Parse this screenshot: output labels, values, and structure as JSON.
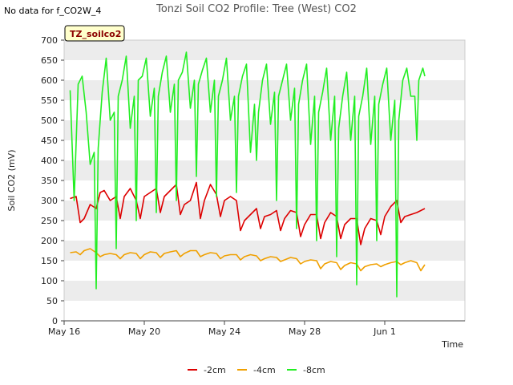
{
  "header": {
    "no_data_note": "No data for f_CO2W_4",
    "title": "Tonzi Soil CO2 Profile: Tree (West) CO2"
  },
  "chart_data": {
    "type": "line",
    "title": "Tonzi Soil CO2 Profile: Tree (West) CO2",
    "xlabel": "Time",
    "ylabel": "Soil CO2 (mV)",
    "ylim": [
      0,
      700
    ],
    "yticks": [
      0,
      50,
      100,
      150,
      200,
      250,
      300,
      350,
      400,
      450,
      500,
      550,
      600,
      650,
      700
    ],
    "xlim": [
      0,
      20
    ],
    "x_unit": "days since May 16",
    "xticks": [
      {
        "value": 0,
        "label": "May 16"
      },
      {
        "value": 4,
        "label": "May 20"
      },
      {
        "value": 8,
        "label": "May 24"
      },
      {
        "value": 12,
        "label": "May 28"
      },
      {
        "value": 16,
        "label": "Jun 1"
      }
    ],
    "badge": "TZ_soilco2",
    "legend_position": "bottom-center",
    "series": [
      {
        "name": "-2cm",
        "color": "#dd0000",
        "x": [
          0.3,
          0.6,
          0.8,
          1.0,
          1.3,
          1.6,
          1.8,
          2.0,
          2.3,
          2.6,
          2.8,
          3.0,
          3.3,
          3.6,
          3.8,
          4.0,
          4.3,
          4.6,
          4.8,
          5.0,
          5.3,
          5.6,
          5.8,
          6.0,
          6.3,
          6.6,
          6.8,
          7.0,
          7.3,
          7.6,
          7.8,
          8.0,
          8.3,
          8.6,
          8.8,
          9.0,
          9.3,
          9.6,
          9.8,
          10.0,
          10.3,
          10.6,
          10.8,
          11.0,
          11.3,
          11.6,
          11.8,
          12.0,
          12.3,
          12.6,
          12.8,
          13.0,
          13.3,
          13.6,
          13.8,
          14.0,
          14.3,
          14.6,
          14.8,
          15.0,
          15.3,
          15.6,
          15.8,
          16.0,
          16.3,
          16.6,
          16.8,
          17.0,
          17.3,
          17.6,
          17.8,
          18.0
        ],
        "values": [
          305,
          310,
          245,
          255,
          290,
          280,
          320,
          325,
          300,
          310,
          255,
          310,
          330,
          300,
          255,
          310,
          320,
          330,
          270,
          310,
          325,
          340,
          265,
          290,
          300,
          345,
          255,
          300,
          340,
          315,
          260,
          300,
          310,
          300,
          225,
          250,
          265,
          280,
          230,
          260,
          265,
          275,
          225,
          255,
          275,
          270,
          210,
          240,
          265,
          265,
          205,
          245,
          270,
          260,
          205,
          240,
          255,
          255,
          190,
          230,
          255,
          250,
          215,
          260,
          285,
          300,
          245,
          260,
          265,
          270,
          275,
          280
        ]
      },
      {
        "name": "-4cm",
        "color": "#f0a000",
        "x": [
          0.3,
          0.6,
          0.8,
          1.0,
          1.3,
          1.6,
          1.8,
          2.0,
          2.3,
          2.6,
          2.8,
          3.0,
          3.3,
          3.6,
          3.8,
          4.0,
          4.3,
          4.6,
          4.8,
          5.0,
          5.3,
          5.6,
          5.8,
          6.0,
          6.3,
          6.6,
          6.8,
          7.0,
          7.3,
          7.6,
          7.8,
          8.0,
          8.3,
          8.6,
          8.8,
          9.0,
          9.3,
          9.6,
          9.8,
          10.0,
          10.3,
          10.6,
          10.8,
          11.0,
          11.3,
          11.6,
          11.8,
          12.0,
          12.3,
          12.6,
          12.8,
          13.0,
          13.3,
          13.6,
          13.8,
          14.0,
          14.3,
          14.6,
          14.8,
          15.0,
          15.3,
          15.6,
          15.8,
          16.0,
          16.3,
          16.6,
          16.8,
          17.0,
          17.3,
          17.6,
          17.8,
          18.0
        ],
        "values": [
          170,
          172,
          165,
          175,
          180,
          170,
          160,
          165,
          168,
          165,
          155,
          165,
          170,
          168,
          155,
          165,
          172,
          170,
          158,
          168,
          172,
          175,
          160,
          168,
          175,
          175,
          160,
          165,
          170,
          168,
          155,
          162,
          165,
          165,
          152,
          160,
          165,
          162,
          150,
          155,
          160,
          158,
          148,
          152,
          158,
          155,
          142,
          148,
          152,
          150,
          130,
          142,
          148,
          145,
          128,
          138,
          145,
          142,
          125,
          135,
          140,
          142,
          135,
          140,
          145,
          148,
          140,
          145,
          150,
          145,
          125,
          140
        ]
      },
      {
        "name": "-8cm",
        "color": "#22ee22",
        "x": [
          0.3,
          0.5,
          0.7,
          0.9,
          1.1,
          1.3,
          1.5,
          1.6,
          1.7,
          1.9,
          2.1,
          2.3,
          2.5,
          2.6,
          2.7,
          2.9,
          3.1,
          3.3,
          3.5,
          3.6,
          3.7,
          3.9,
          4.1,
          4.3,
          4.5,
          4.6,
          4.7,
          4.9,
          5.1,
          5.3,
          5.5,
          5.6,
          5.7,
          5.9,
          6.1,
          6.3,
          6.5,
          6.6,
          6.7,
          6.9,
          7.1,
          7.3,
          7.5,
          7.6,
          7.7,
          7.9,
          8.1,
          8.3,
          8.5,
          8.6,
          8.7,
          8.9,
          9.1,
          9.3,
          9.5,
          9.6,
          9.7,
          9.9,
          10.1,
          10.3,
          10.5,
          10.6,
          10.7,
          10.9,
          11.1,
          11.3,
          11.5,
          11.6,
          11.7,
          11.9,
          12.1,
          12.3,
          12.5,
          12.6,
          12.7,
          12.9,
          13.1,
          13.3,
          13.5,
          13.6,
          13.7,
          13.9,
          14.1,
          14.3,
          14.5,
          14.6,
          14.7,
          14.9,
          15.1,
          15.3,
          15.5,
          15.6,
          15.7,
          15.9,
          16.1,
          16.3,
          16.5,
          16.6,
          16.7,
          16.9,
          17.1,
          17.3,
          17.5,
          17.6,
          17.7,
          17.9,
          18.0
        ],
        "values": [
          575,
          300,
          590,
          610,
          520,
          390,
          420,
          80,
          430,
          570,
          655,
          500,
          520,
          180,
          560,
          600,
          660,
          480,
          560,
          250,
          600,
          610,
          655,
          510,
          580,
          270,
          560,
          620,
          660,
          520,
          590,
          300,
          600,
          620,
          670,
          530,
          600,
          360,
          590,
          625,
          655,
          520,
          600,
          310,
          560,
          600,
          655,
          500,
          560,
          320,
          560,
          610,
          640,
          420,
          540,
          400,
          520,
          600,
          640,
          490,
          570,
          300,
          560,
          600,
          640,
          500,
          580,
          230,
          540,
          600,
          640,
          440,
          560,
          200,
          520,
          570,
          630,
          450,
          560,
          160,
          480,
          560,
          620,
          450,
          560,
          90,
          510,
          560,
          630,
          440,
          560,
          200,
          540,
          590,
          630,
          450,
          550,
          60,
          500,
          600,
          630,
          560,
          560,
          450,
          600,
          630,
          610
        ]
      }
    ]
  }
}
